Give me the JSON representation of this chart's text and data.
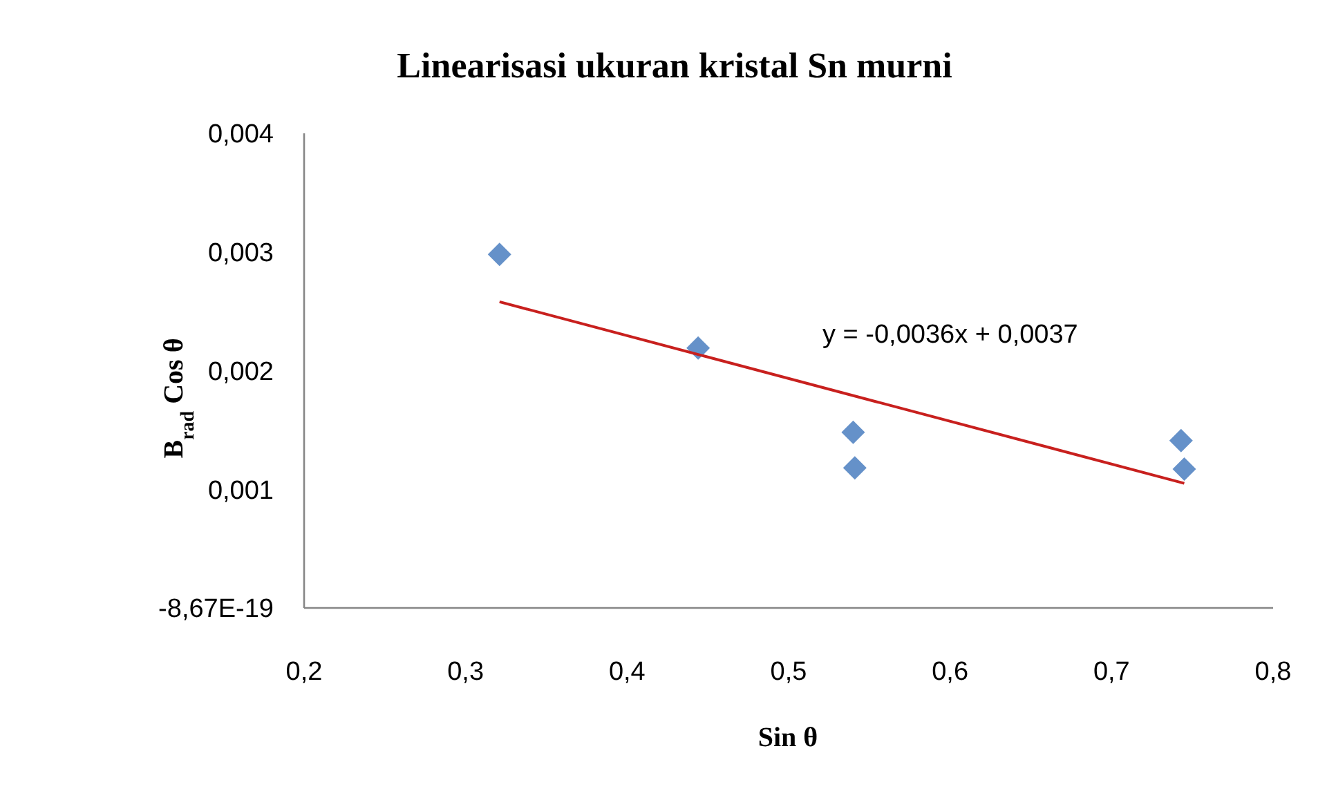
{
  "chart_data": {
    "type": "scatter",
    "title": "Linearisasi ukuran kristal Sn murni",
    "xlabel": "Sin θ",
    "ylabel": "B$_{rad}$ Cos θ",
    "xlim": [
      0.2,
      0.8
    ],
    "ylim": [
      0,
      0.004
    ],
    "xticks": [
      {
        "value": 0.2,
        "label": "0,2"
      },
      {
        "value": 0.3,
        "label": "0,3"
      },
      {
        "value": 0.4,
        "label": "0,4"
      },
      {
        "value": 0.5,
        "label": "0,5"
      },
      {
        "value": 0.6,
        "label": "0,6"
      },
      {
        "value": 0.7,
        "label": "0,7"
      },
      {
        "value": 0.8,
        "label": "0,8"
      }
    ],
    "yticks": [
      {
        "value": 0,
        "label": "-8,67E-19"
      },
      {
        "value": 0.001,
        "label": "0,001"
      },
      {
        "value": 0.002,
        "label": "0,002"
      },
      {
        "value": 0.003,
        "label": "0,003"
      },
      {
        "value": 0.004,
        "label": "0,004"
      }
    ],
    "grid": false,
    "marker": "diamond",
    "series": [
      {
        "color": "#6591c9",
        "x": [
          0.321,
          0.444,
          0.54,
          0.541,
          0.743,
          0.745
        ],
        "values": [
          0.00298,
          0.00219,
          0.00148,
          0.00118,
          0.00141,
          0.00117
        ]
      },
      {
        "type": "line",
        "color": "#c8201e",
        "marker": "none",
        "x": [
          0.321,
          0.745
        ],
        "values": [
          0.00258,
          0.00105
        ]
      }
    ],
    "annotations": [
      "y = -0,0036x + 0,0037"
    ]
  }
}
